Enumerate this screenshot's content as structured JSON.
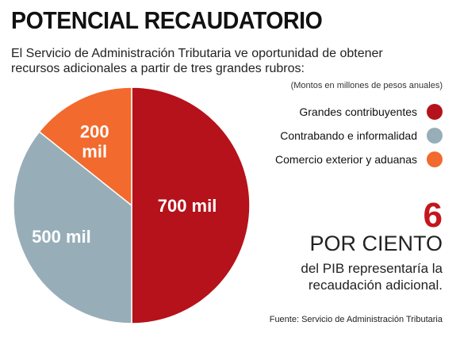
{
  "header": {
    "title": "POTENCIAL RECAUDATORIO",
    "subtitle": "El Servicio de Administración Tributaria ve oportunidad de obtener recursos adicionales a partir de tres grandes rubros:"
  },
  "legend": {
    "note": "(Montos en millones de pesos anuales)",
    "items": [
      {
        "label": "Grandes contribuyentes",
        "color": "#b5121b"
      },
      {
        "label": "Contrabando e informalidad",
        "color": "#97aeb9"
      },
      {
        "label": "Comercio exterior y aduanas",
        "color": "#f26a2e"
      }
    ]
  },
  "chart_data": {
    "type": "pie",
    "slices": [
      {
        "category": "Grandes contribuyentes",
        "value": 700,
        "label": "700 mil",
        "color": "#b5121b"
      },
      {
        "category": "Contrabando e informalidad",
        "value": 500,
        "label": "500 mil",
        "color": "#97aeb9"
      },
      {
        "category": "Comercio exterior y aduanas",
        "value": 200,
        "label": "200 mil",
        "color": "#f26a2e"
      }
    ],
    "legend_position": "right",
    "start": "top, clockwise"
  },
  "callout": {
    "number": "6",
    "unit": "POR CIENTO",
    "text": "del PIB representaría la recaudación adicional."
  },
  "source": "Fuente: Servicio de Administración Tributaria"
}
